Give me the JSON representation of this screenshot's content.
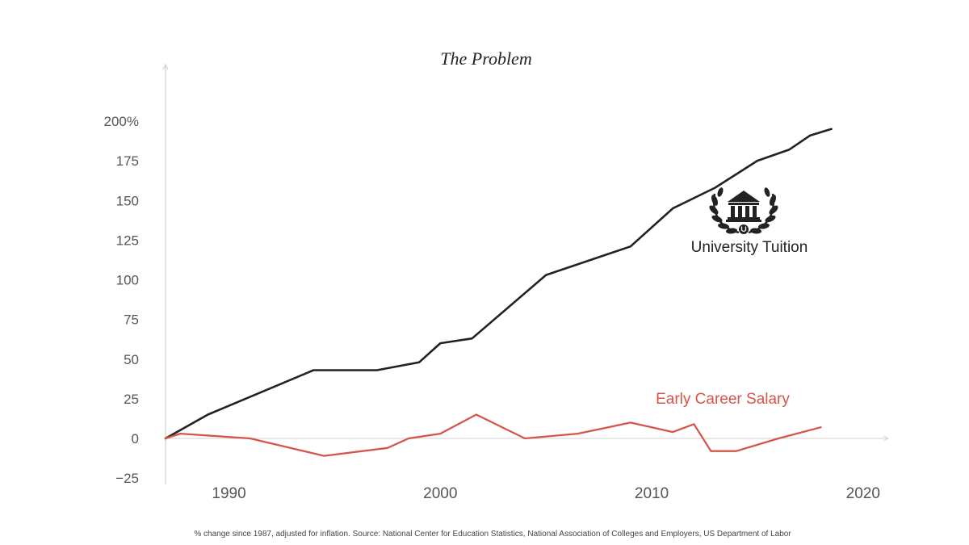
{
  "chart_data": {
    "type": "line",
    "title": "The Problem",
    "xlabel": "",
    "ylabel": "",
    "xlim": [
      1987,
      2021
    ],
    "ylim": [
      -25,
      200
    ],
    "y_ticks": [
      "200%",
      "175",
      "150",
      "125",
      "100",
      "75",
      "50",
      "25",
      "0",
      "−25"
    ],
    "y_tick_values": [
      200,
      175,
      150,
      125,
      100,
      75,
      50,
      25,
      0,
      -25
    ],
    "x_ticks": [
      "1990",
      "2000",
      "2010",
      "2020"
    ],
    "x_tick_values": [
      1990,
      2000,
      2010,
      2020
    ],
    "grid": false,
    "legend": "none (series labeled inline)",
    "series": [
      {
        "name": "University Tuition",
        "color": "#222222",
        "label_position": "right, near 2010",
        "points": [
          [
            1987,
            0
          ],
          [
            1989,
            15
          ],
          [
            1994,
            43
          ],
          [
            1997,
            43
          ],
          [
            1999,
            48
          ],
          [
            2000,
            60
          ],
          [
            2001.5,
            63
          ],
          [
            2005,
            103
          ],
          [
            2009,
            121
          ],
          [
            2011,
            145
          ],
          [
            2013,
            158
          ],
          [
            2015,
            175
          ],
          [
            2016.5,
            182
          ],
          [
            2017.5,
            191
          ],
          [
            2018.5,
            195
          ]
        ]
      },
      {
        "name": "Early Career Salary",
        "color": "#d4564a",
        "label_position": "right, above line",
        "points": [
          [
            1987,
            0
          ],
          [
            1987.7,
            3
          ],
          [
            1991,
            0
          ],
          [
            1994.5,
            -11
          ],
          [
            1997.5,
            -6
          ],
          [
            1998.5,
            0
          ],
          [
            2000,
            3
          ],
          [
            2001.7,
            15
          ],
          [
            2004,
            0
          ],
          [
            2006.5,
            3
          ],
          [
            2009,
            10
          ],
          [
            2011,
            4
          ],
          [
            2012,
            9
          ],
          [
            2012.8,
            -8
          ],
          [
            2014,
            -8
          ],
          [
            2016,
            0
          ],
          [
            2018,
            7
          ]
        ]
      }
    ],
    "icon": "university-laurel-icon",
    "source_note": "% change since 1987, adjusted for inflation. Source: National Center for Education Statistics, National Association of Colleges and Employers, US Department of Labor"
  }
}
